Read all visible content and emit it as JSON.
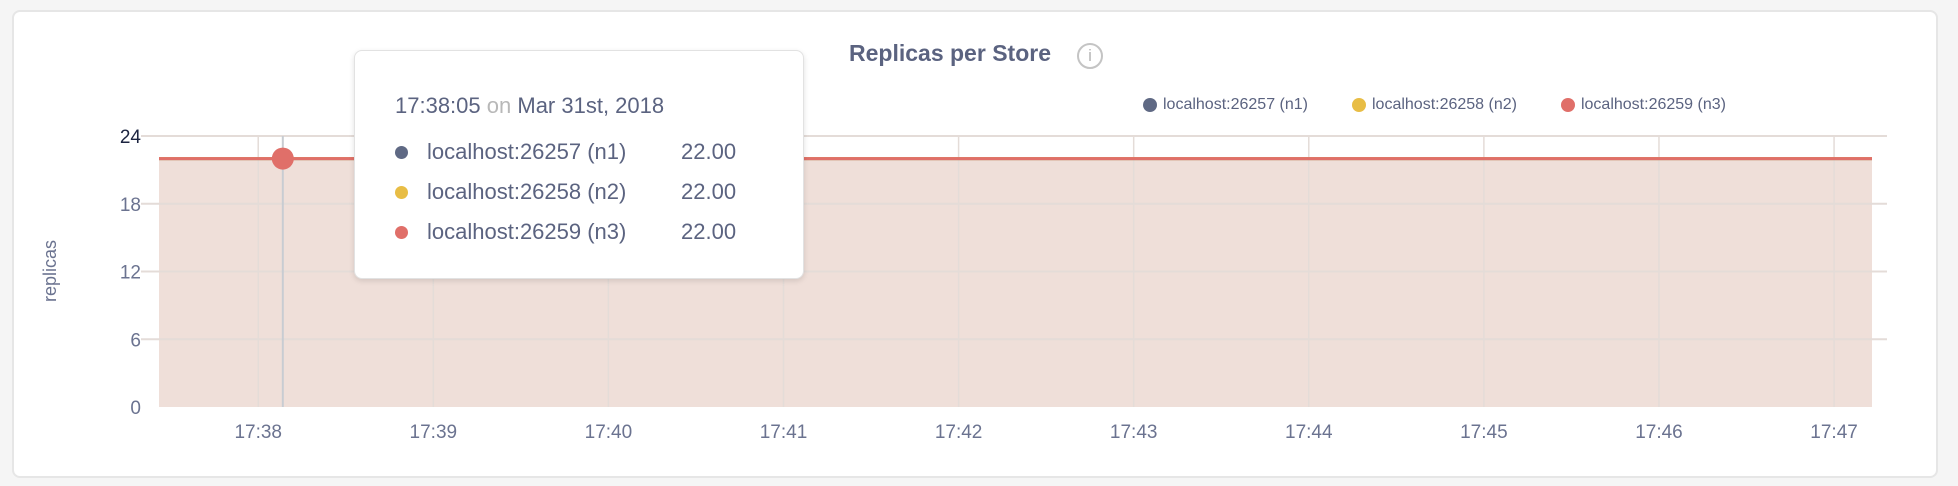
{
  "chart_data": {
    "type": "area",
    "title": "Replicas per Store",
    "ylabel": "replicas",
    "xlabel": "",
    "ylim": [
      0,
      24
    ],
    "yticks": [
      "0",
      "6",
      "12",
      "18",
      "24"
    ],
    "xticks": [
      "17:38",
      "17:39",
      "17:40",
      "17:41",
      "17:42",
      "17:43",
      "17:44",
      "17:45",
      "17:46",
      "17:47"
    ],
    "xlim": [
      "17:37:26",
      "17:47:13"
    ],
    "grid": true,
    "legend_position": "top-right",
    "series": [
      {
        "name": "localhost:26257 (n1)",
        "color": "#5f6984",
        "x": [
          "17:37:26",
          "17:47:13"
        ],
        "values": [
          22,
          22
        ]
      },
      {
        "name": "localhost:26258 (n2)",
        "color": "#e8bd45",
        "x": [
          "17:37:26",
          "17:47:13"
        ],
        "values": [
          22,
          22
        ]
      },
      {
        "name": "localhost:26259 (n3)",
        "color": "#e06f69",
        "x": [
          "17:37:26",
          "17:47:13"
        ],
        "values": [
          22,
          22
        ]
      }
    ],
    "fill_color": "#efdfd9",
    "hover": {
      "time": "17:38:05",
      "on": "on",
      "date": "Mar 31st, 2018",
      "rows": [
        {
          "label": "localhost:26257 (n1)",
          "value": "22.00",
          "color": "#5f6984"
        },
        {
          "label": "localhost:26258 (n2)",
          "value": "22.00",
          "color": "#e8bd45"
        },
        {
          "label": "localhost:26259 (n3)",
          "value": "22.00",
          "color": "#e06f69"
        }
      ]
    }
  },
  "icons": {
    "info": "info-circle-icon",
    "info_glyph": "i"
  }
}
